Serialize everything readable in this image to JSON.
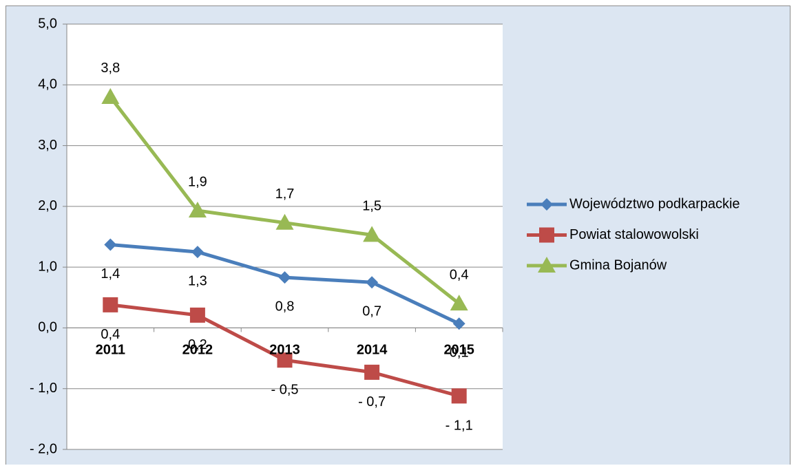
{
  "chart_data": {
    "type": "line",
    "categories": [
      "2011",
      "2012",
      "2013",
      "2014",
      "2015"
    ],
    "series": [
      {
        "name": "Województwo podkarpackie",
        "color": "#4a7ebb",
        "marker": "diamond",
        "values": [
          1.37,
          1.25,
          0.83,
          0.75,
          0.07
        ],
        "value_labels": [
          "1,4",
          "1,3",
          "0,8",
          "0,7",
          "0,1"
        ]
      },
      {
        "name": "Powiat stalowowolski",
        "color": "#be4b48",
        "marker": "square",
        "values": [
          0.38,
          0.21,
          -0.53,
          -0.73,
          -1.12
        ],
        "value_labels": [
          "0,4",
          "0,2",
          "- 0,5",
          "- 0,7",
          "- 1,1"
        ]
      },
      {
        "name": "Gmina Bojanów",
        "color": "#98b954",
        "marker": "triangle",
        "values": [
          3.8,
          1.93,
          1.73,
          1.53,
          0.4
        ],
        "value_labels": [
          "3,8",
          "1,9",
          "1,7",
          "1,5",
          "0,4"
        ]
      }
    ],
    "ylim": [
      -2,
      5
    ],
    "yticks": [
      {
        "value": -2,
        "label": "- 2,0"
      },
      {
        "value": -1,
        "label": "- 1,0"
      },
      {
        "value": 0,
        "label": "0,0"
      },
      {
        "value": 1,
        "label": "1,0"
      },
      {
        "value": 2,
        "label": "2,0"
      },
      {
        "value": 3,
        "label": "3,0"
      },
      {
        "value": 4,
        "label": "4,0"
      },
      {
        "value": 5,
        "label": "5,0"
      }
    ],
    "grid": true,
    "legend": "right"
  }
}
